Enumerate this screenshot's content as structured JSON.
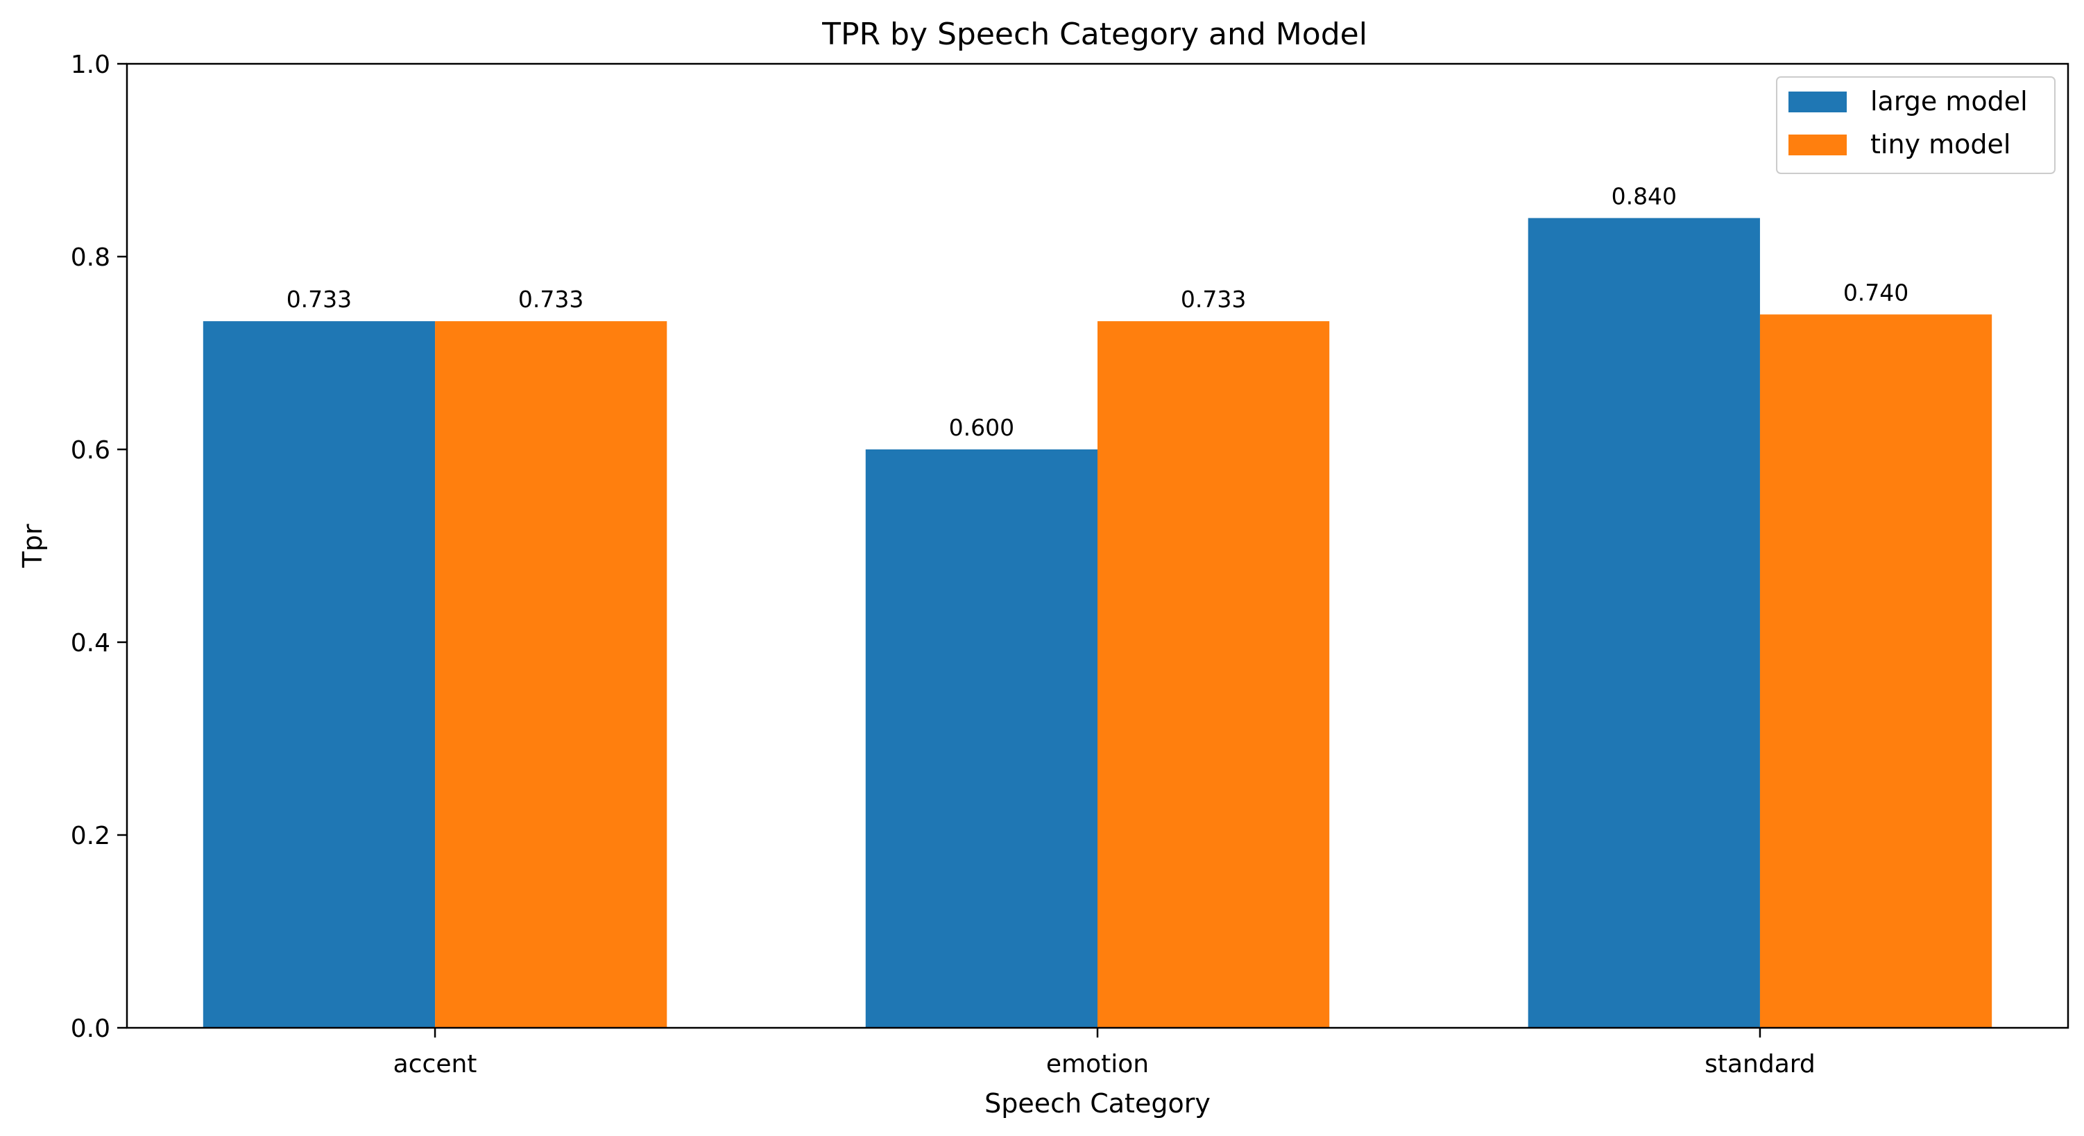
{
  "chart_data": {
    "type": "bar",
    "title": "TPR by Speech Category and Model",
    "xlabel": "Speech Category",
    "ylabel": "Tpr",
    "categories": [
      "accent",
      "emotion",
      "standard"
    ],
    "series": [
      {
        "name": "large model",
        "color": "#1f77b4",
        "values": [
          0.733,
          0.6,
          0.84
        ],
        "labels": [
          "0.733",
          "0.600",
          "0.840"
        ]
      },
      {
        "name": "tiny model",
        "color": "#ff7f0e",
        "values": [
          0.733,
          0.733,
          0.74
        ],
        "labels": [
          "0.733",
          "0.733",
          "0.740"
        ]
      }
    ],
    "ylim": [
      0,
      1.0
    ],
    "yticks": [
      0.0,
      0.2,
      0.4,
      0.6,
      0.8,
      1.0
    ],
    "ytick_labels": [
      "0.0",
      "0.2",
      "0.4",
      "0.6",
      "0.8",
      "1.0"
    ],
    "grid": false,
    "legend_position": "top-right"
  }
}
